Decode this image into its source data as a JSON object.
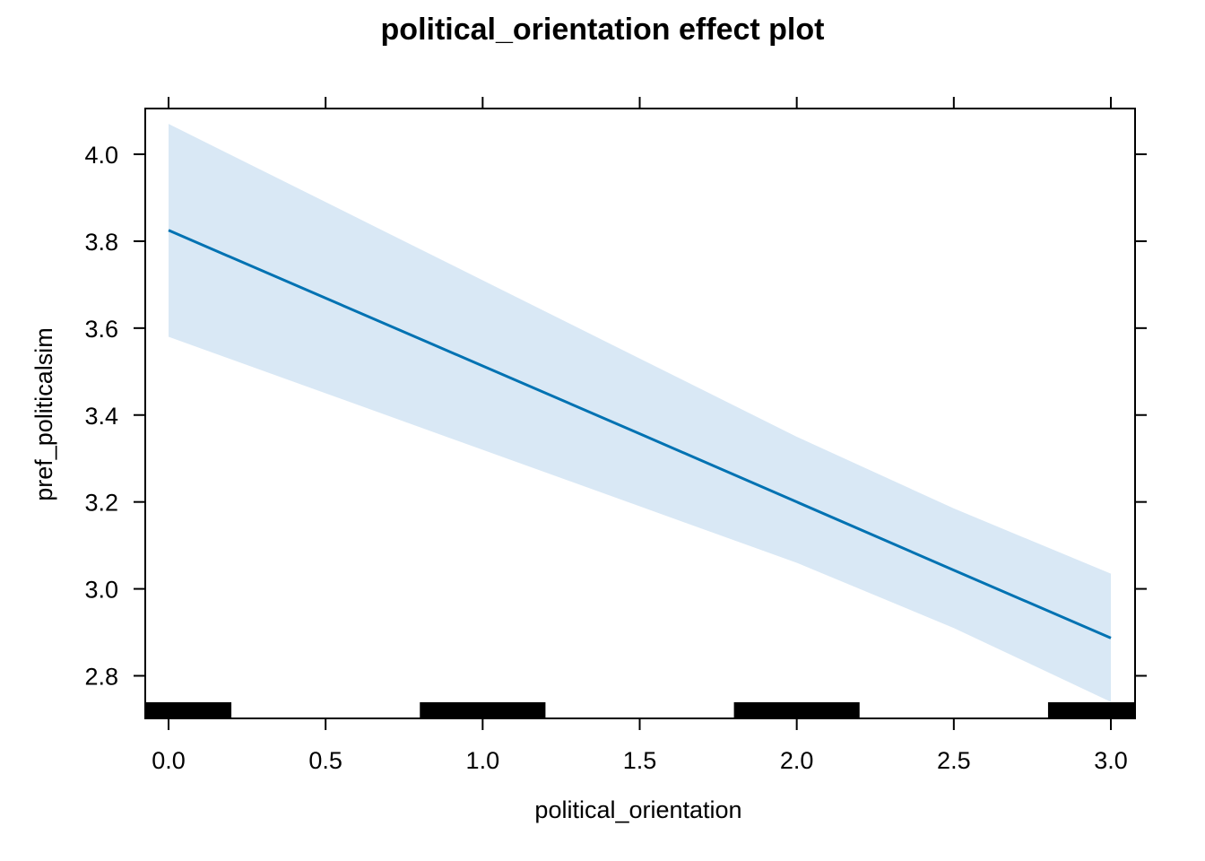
{
  "chart_data": {
    "type": "line",
    "title": "political_orientation effect plot",
    "xlabel": "political_orientation",
    "ylabel": "pref_politicalsim",
    "xlim": [
      -0.075,
      3.075
    ],
    "ylim": [
      2.7,
      4.1
    ],
    "x_ticks": [
      "0.0",
      "0.5",
      "1.0",
      "1.5",
      "2.0",
      "2.5",
      "3.0"
    ],
    "x_tick_values": [
      0.0,
      0.5,
      1.0,
      1.5,
      2.0,
      2.5,
      3.0
    ],
    "y_ticks": [
      "2.8",
      "3.0",
      "3.2",
      "3.4",
      "3.6",
      "3.8",
      "4.0"
    ],
    "y_tick_values": [
      2.8,
      3.0,
      3.2,
      3.4,
      3.6,
      3.8,
      4.0
    ],
    "grid": false,
    "series": [
      {
        "x": [
          0.0,
          0.5,
          1.0,
          1.5,
          2.0,
          2.5,
          3.0
        ],
        "y": [
          3.825,
          3.669,
          3.513,
          3.357,
          3.2,
          3.043,
          2.887
        ],
        "lower": [
          3.58,
          3.45,
          3.32,
          3.19,
          3.06,
          2.91,
          2.74
        ],
        "upper": [
          4.07,
          3.89,
          3.71,
          3.53,
          3.35,
          3.185,
          3.035
        ]
      }
    ],
    "rug": [
      {
        "from": -0.075,
        "to": 0.2
      },
      {
        "from": 0.8,
        "to": 1.2
      },
      {
        "from": 1.8,
        "to": 2.2
      },
      {
        "from": 2.8,
        "to": 3.075
      }
    ],
    "colors": {
      "line": "#0072b2",
      "band": "#d9e8f5",
      "rug": "#000000",
      "axis": "#000000"
    }
  }
}
